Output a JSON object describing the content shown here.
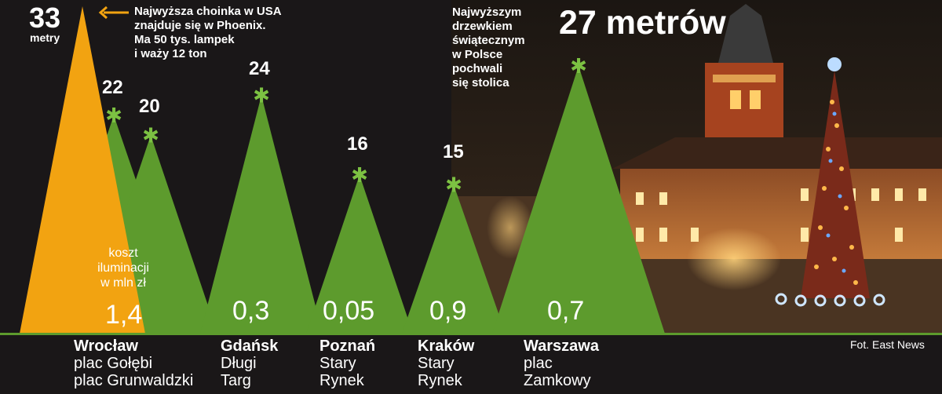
{
  "chart_data": {
    "type": "area",
    "unit": "metrów",
    "trees": [
      {
        "city": "",
        "place": "",
        "height": 33,
        "label": "33",
        "sublabel": "metry",
        "cost": "",
        "color": "#f2a311"
      },
      {
        "city": "Wrocław",
        "place": "plac Gołębi",
        "height": 22,
        "label": "22",
        "sublabel": "",
        "cost": "1,4",
        "color": "#5d9b2d"
      },
      {
        "city": "",
        "place": "plac Grunwaldzki",
        "height": 20,
        "label": "20",
        "sublabel": "",
        "cost": "",
        "color": "#5d9b2d"
      },
      {
        "city": "Gdańsk",
        "place": "Długi Targ",
        "height": 24,
        "label": "24",
        "sublabel": "",
        "cost": "0,3",
        "color": "#5d9b2d"
      },
      {
        "city": "Poznań",
        "place": "Stary Rynek",
        "height": 16,
        "label": "16",
        "sublabel": "",
        "cost": "0,05",
        "color": "#5d9b2d"
      },
      {
        "city": "Kraków",
        "place": "Stary Rynek",
        "height": 15,
        "label": "15",
        "sublabel": "",
        "cost": "0,9",
        "color": "#5d9b2d"
      },
      {
        "city": "Warszawa",
        "place": "plac Zamkowy",
        "height": 27,
        "label": "27 metrów",
        "sublabel": "",
        "cost": "0,7",
        "color": "#5d9b2d"
      }
    ],
    "cost_label": "koszt iluminacji w mln zł",
    "annotations": [
      "Najwyższa choinka w USA znajduje się w Phoenix. Ma 50 tys. lampek i waży 12 ton",
      "Najwyższym drzewkiem świątecznym w Polsce pochwali się stolica"
    ]
  },
  "labels": {
    "usa_height": "33",
    "usa_unit": "metry",
    "usa_note": "Najwyższa choinka w USA\nznajduje się w Phoenix.\nMa 50 tys. lampek\ni waży 12 ton",
    "warsaw_note": "Najwyższym\ndrzewkiem\nświątecznym\nw Polsce\npochwali\nsię stolica",
    "warsaw_height": "27 metrów",
    "t_wro1": "22",
    "t_wro2": "20",
    "t_gda": "24",
    "t_poz": "16",
    "t_kra": "15",
    "cost_label": "koszt\niluminacji\nw mln zł",
    "c_wro": "1,4",
    "c_gda": "0,3",
    "c_poz": "0,05",
    "c_kra": "0,9",
    "c_war": "0,7",
    "city_wro": "Wrocław",
    "place_wro": "plac Gołębi\nplac Grunwaldzki",
    "city_gda": "Gdańsk",
    "place_gda": "Długi\nTarg",
    "city_poz": "Poznań",
    "place_poz": "Stary\nRynek",
    "city_kra": "Kraków",
    "place_kra": "Stary\nRynek",
    "city_war": "Warszawa",
    "place_war": "plac\nZamkowy",
    "credit": "Fot. East News"
  },
  "colors": {
    "background": "#1a1718",
    "green": "#5d9b2d",
    "orange": "#f2a311",
    "star": "#7cc142"
  }
}
